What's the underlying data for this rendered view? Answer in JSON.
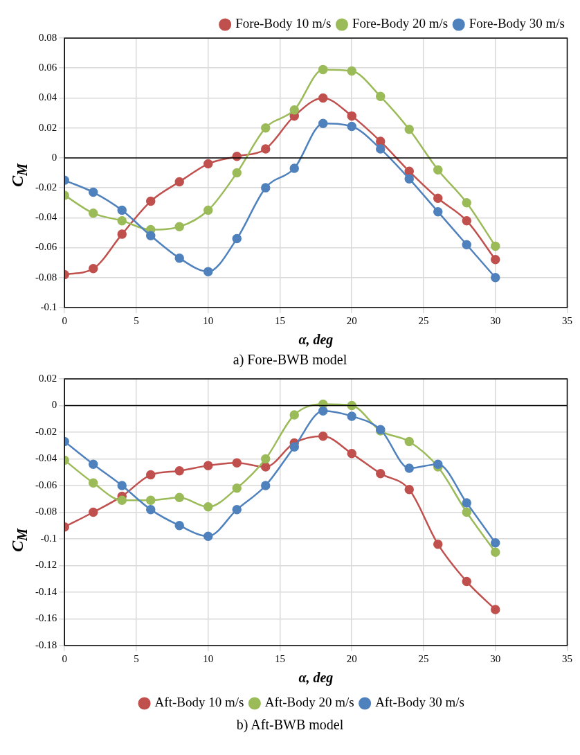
{
  "chart_data": [
    {
      "type": "line",
      "xlabel": "α, deg",
      "ylabel": "C$_{M}$",
      "annotations": [
        "a)  Fore-BWB model"
      ],
      "x": [
        0,
        2,
        4,
        6,
        8,
        10,
        12,
        14,
        16,
        18,
        20,
        22,
        24,
        26,
        28,
        30
      ],
      "xlim": [
        0,
        35
      ],
      "xticks": [
        0,
        5,
        10,
        15,
        20,
        25,
        30,
        35
      ],
      "ylim": [
        -0.1,
        0.08
      ],
      "yticks": [
        -0.1,
        -0.08,
        -0.06,
        -0.04,
        -0.02,
        0,
        0.02,
        0.04,
        0.06,
        0.08
      ],
      "grid": true,
      "legend": "top right",
      "marker": "circle",
      "line_style": "solid",
      "ref_lines": [
        {
          "axis": "y",
          "value": 0,
          "color": "#000000"
        }
      ],
      "series": [
        {
          "name": "Fore-Body 10 m/s",
          "color": "#c0504d",
          "values": [
            -0.078,
            -0.074,
            -0.051,
            -0.029,
            -0.016,
            -0.004,
            0.001,
            0.006,
            0.028,
            0.04,
            0.028,
            0.011,
            -0.009,
            -0.027,
            -0.042,
            -0.068
          ]
        },
        {
          "name": "Fore-Body 20 m/s",
          "color": "#9bbb59",
          "values": [
            -0.025,
            -0.037,
            -0.042,
            -0.048,
            -0.046,
            -0.035,
            -0.01,
            0.02,
            0.032,
            0.059,
            0.058,
            0.041,
            0.019,
            -0.008,
            -0.03,
            -0.059
          ]
        },
        {
          "name": "Fore-Body 30 m/s",
          "color": "#4f81bd",
          "values": [
            -0.015,
            -0.023,
            -0.035,
            -0.052,
            -0.067,
            -0.076,
            -0.054,
            -0.02,
            -0.007,
            0.023,
            0.021,
            0.006,
            -0.014,
            -0.036,
            -0.058,
            -0.08
          ]
        }
      ]
    },
    {
      "type": "line",
      "xlabel": "α, deg",
      "ylabel": "C$_{M}$",
      "annotations": [
        "b) Aft-BWB model"
      ],
      "x": [
        0,
        2,
        4,
        6,
        8,
        10,
        12,
        14,
        16,
        18,
        20,
        22,
        24,
        26,
        28,
        30
      ],
      "xlim": [
        0,
        35
      ],
      "xticks": [
        0,
        5,
        10,
        15,
        20,
        25,
        30,
        35
      ],
      "ylim": [
        -0.18,
        0.02
      ],
      "yticks": [
        -0.18,
        -0.16,
        -0.14,
        -0.12,
        -0.1,
        -0.08,
        -0.06,
        -0.04,
        -0.02,
        0,
        0.02
      ],
      "grid": true,
      "legend": "bottom",
      "marker": "circle",
      "line_style": "solid",
      "ref_lines": [
        {
          "axis": "y",
          "value": 0,
          "color": "#000000"
        }
      ],
      "series": [
        {
          "name": "Aft-Body 10 m/s",
          "color": "#c0504d",
          "values": [
            -0.091,
            -0.08,
            -0.068,
            -0.052,
            -0.049,
            -0.045,
            -0.043,
            -0.046,
            -0.028,
            -0.023,
            -0.036,
            -0.051,
            -0.063,
            -0.104,
            -0.132,
            -0.153
          ]
        },
        {
          "name": "Aft-Body 20 m/s",
          "color": "#9bbb59",
          "values": [
            -0.041,
            -0.058,
            -0.071,
            -0.071,
            -0.069,
            -0.076,
            -0.062,
            -0.04,
            -0.007,
            0.001,
            0.0,
            -0.019,
            -0.027,
            -0.046,
            -0.08,
            -0.11
          ]
        },
        {
          "name": "Aft-Body 30 m/s",
          "color": "#4f81bd",
          "values": [
            -0.027,
            -0.044,
            -0.06,
            -0.078,
            -0.09,
            -0.098,
            -0.078,
            -0.06,
            -0.031,
            -0.004,
            -0.008,
            -0.018,
            -0.047,
            -0.044,
            -0.073,
            -0.103
          ]
        }
      ]
    }
  ]
}
